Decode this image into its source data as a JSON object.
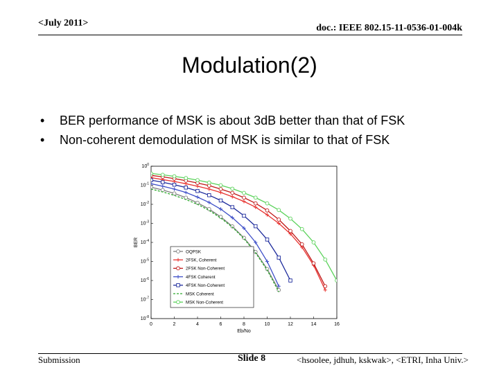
{
  "header": {
    "date": "<July 2011>",
    "doc_id": "doc.: IEEE 802.15-11-0536-01-004k"
  },
  "slide": {
    "title": "Modulation(2)",
    "bullets": [
      "BER performance of MSK is about 3dB better than that of FSK",
      "Non-coherent demodulation of MSK is similar to that of FSK"
    ]
  },
  "footer": {
    "left": "Submission",
    "center": "Slide 8",
    "right": "<hsoolee, jdhuh, kskwak>, <ETRI, Inha Univ.>"
  },
  "chart_data": {
    "type": "line",
    "title": "",
    "xlabel": "Eb/No",
    "ylabel": "BER",
    "xlim": [
      0,
      16
    ],
    "ylim_log10": [
      -8,
      0
    ],
    "y_scale": "log",
    "grid": false,
    "legend_position": "bottom-left",
    "x_ticks": [
      0,
      2,
      4,
      6,
      8,
      10,
      12,
      14,
      16
    ],
    "y_tick_exponents": [
      0,
      -1,
      -2,
      -3,
      -4,
      -5,
      -6,
      -7,
      -8
    ],
    "series": [
      {
        "name": "OQPSK",
        "color": "#7f7f7f",
        "marker": "open-circle",
        "dashed": false,
        "x": [
          0,
          1,
          2,
          3,
          4,
          5,
          6,
          7,
          8,
          9,
          10,
          11
        ],
        "log10_y": [
          -1.1,
          -1.25,
          -1.43,
          -1.65,
          -1.92,
          -2.25,
          -2.66,
          -3.16,
          -3.76,
          -4.5,
          -5.4,
          -6.5
        ]
      },
      {
        "name": "2FSK, Coherent",
        "color": "#e8322f",
        "marker": "plus",
        "dashed": false,
        "x": [
          0,
          1,
          2,
          3,
          4,
          5,
          6,
          7,
          8,
          9,
          10,
          11,
          12,
          13,
          14,
          15
        ],
        "log10_y": [
          -0.6,
          -0.7,
          -0.8,
          -0.92,
          -1.05,
          -1.2,
          -1.38,
          -1.6,
          -1.85,
          -2.15,
          -2.55,
          -3.0,
          -3.55,
          -4.25,
          -5.2,
          -6.5
        ]
      },
      {
        "name": "2FSK Non-Coherent",
        "color": "#c01818",
        "marker": "open-circle",
        "dashed": false,
        "x": [
          0,
          1,
          2,
          3,
          4,
          5,
          6,
          7,
          8,
          9,
          10,
          11,
          12,
          13,
          14,
          15
        ],
        "log10_y": [
          -0.48,
          -0.56,
          -0.65,
          -0.76,
          -0.88,
          -1.02,
          -1.2,
          -1.4,
          -1.65,
          -1.95,
          -2.32,
          -2.8,
          -3.4,
          -4.1,
          -5.1,
          -6.3
        ]
      },
      {
        "name": "4FSK Coherent",
        "color": "#3e4fc8",
        "marker": "plus",
        "dashed": false,
        "x": [
          0,
          1,
          2,
          3,
          4,
          5,
          6,
          7,
          8,
          9,
          10,
          11
        ],
        "log10_y": [
          -0.92,
          -1.05,
          -1.2,
          -1.38,
          -1.62,
          -1.9,
          -2.25,
          -2.7,
          -3.25,
          -4.0,
          -5.0,
          -6.3
        ]
      },
      {
        "name": "4FSK Non-Coherent",
        "color": "#1c2a9c",
        "marker": "open-square",
        "dashed": false,
        "x": [
          0,
          1,
          2,
          3,
          4,
          5,
          6,
          7,
          8,
          9,
          10,
          11,
          12
        ],
        "log10_y": [
          -0.73,
          -0.84,
          -0.97,
          -1.12,
          -1.3,
          -1.52,
          -1.8,
          -2.15,
          -2.6,
          -3.15,
          -3.85,
          -4.8,
          -6.0
        ]
      },
      {
        "name": "MSK Coherent",
        "color": "#2aa82a",
        "marker": "none",
        "dashed": true,
        "x": [
          0,
          1,
          2,
          3,
          4,
          5,
          6,
          7,
          8,
          9,
          10,
          11
        ],
        "log10_y": [
          -1.2,
          -1.35,
          -1.53,
          -1.75,
          -2.0,
          -2.32,
          -2.72,
          -3.2,
          -3.8,
          -4.55,
          -5.45,
          -6.6
        ]
      },
      {
        "name": "MSK Non-Coherent",
        "color": "#5ad25a",
        "marker": "open-circle",
        "dashed": false,
        "x": [
          0,
          1,
          2,
          3,
          4,
          5,
          6,
          7,
          8,
          9,
          10,
          11,
          12,
          13,
          14,
          15,
          16
        ],
        "log10_y": [
          -0.38,
          -0.45,
          -0.53,
          -0.62,
          -0.73,
          -0.86,
          -1.0,
          -1.18,
          -1.4,
          -1.65,
          -1.95,
          -2.3,
          -2.75,
          -3.3,
          -4.0,
          -4.9,
          -6.0
        ]
      }
    ]
  }
}
